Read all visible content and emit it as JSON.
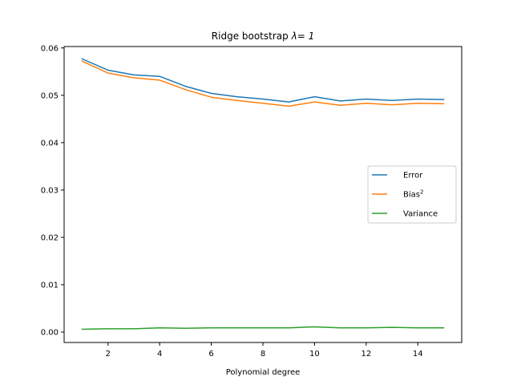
{
  "chart_data": {
    "type": "line",
    "title": "Ridge bootstrap",
    "title_lambda": "λ= 1",
    "xlabel": "Polynomial degree",
    "ylabel": "",
    "xlim": [
      0.3,
      15.7
    ],
    "ylim": [
      -0.0022,
      0.0603
    ],
    "xticks": [
      2,
      4,
      6,
      8,
      10,
      12,
      14
    ],
    "yticks": [
      0.0,
      0.01,
      0.02,
      0.03,
      0.04,
      0.05,
      0.06
    ],
    "ytick_labels": [
      "0.00",
      "0.01",
      "0.02",
      "0.03",
      "0.04",
      "0.05",
      "0.06"
    ],
    "x": [
      1,
      2,
      3,
      4,
      5,
      6,
      7,
      8,
      9,
      10,
      11,
      12,
      13,
      14,
      15
    ],
    "series": [
      {
        "name": "Error",
        "color": "#1f77b4",
        "values": [
          0.0577,
          0.0553,
          0.0543,
          0.054,
          0.0519,
          0.0504,
          0.0497,
          0.0492,
          0.0486,
          0.0497,
          0.0488,
          0.0492,
          0.0489,
          0.0492,
          0.0491
        ]
      },
      {
        "name": "Bias",
        "name_sup": "2",
        "color": "#ff7f0e",
        "values": [
          0.0572,
          0.0547,
          0.0537,
          0.0532,
          0.0512,
          0.0496,
          0.0489,
          0.0483,
          0.0477,
          0.0486,
          0.0479,
          0.0483,
          0.048,
          0.0483,
          0.0482
        ]
      },
      {
        "name": "Variance",
        "color": "#2ca02c",
        "values": [
          0.0006,
          0.0007,
          0.0007,
          0.0009,
          0.0008,
          0.0009,
          0.0009,
          0.0009,
          0.0009,
          0.0011,
          0.0009,
          0.0009,
          0.001,
          0.0009,
          0.0009
        ]
      }
    ],
    "grid": false,
    "legend_position": "center-right"
  }
}
